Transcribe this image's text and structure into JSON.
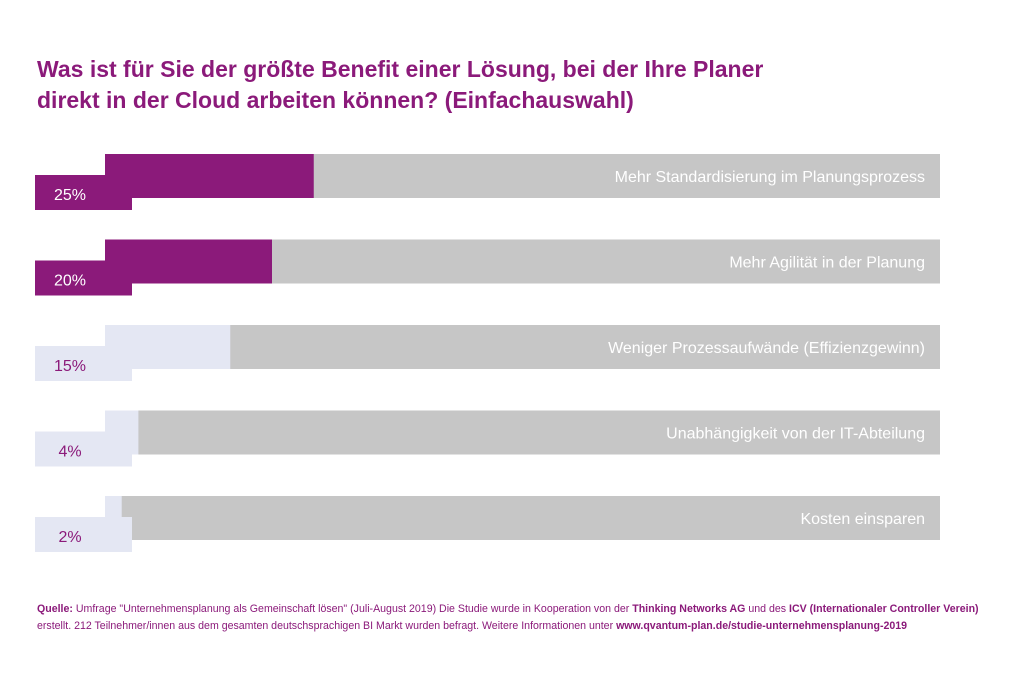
{
  "title_line1": "Was ist für Sie der größte Benefit einer Lösung, bei der Ihre Planer",
  "title_line2": "direkt in der Cloud arbeiten können? (Einfachauswahl)",
  "colors": {
    "accent": "#8b1a7a",
    "track": "#c6c6c6",
    "light": "#e4e7f3",
    "accent_dark": "#5c0f52",
    "light_dark": "#9aa0b4"
  },
  "chart_data": {
    "type": "bar",
    "orientation": "horizontal",
    "categories": [
      "Mehr Standardisierung im Planungsprozess",
      "Mehr Agilität in der Planung",
      "Weniger Prozessaufwände (Effizienzgewinn)",
      "Unabhängigkeit von der IT-Abteilung",
      "Kosten einsparen"
    ],
    "values": [
      25,
      20,
      15,
      4,
      2
    ],
    "value_labels": [
      "25%",
      "20%",
      "15%",
      "4%",
      "2%"
    ],
    "ylim": [
      0,
      100
    ]
  },
  "footer": {
    "source_label": "Quelle:",
    "text1": " Umfrage \"Unternehmensplanung als Gemeinschaft lösen\" (Juli-August 2019) Die Studie wurde in Kooperation von der ",
    "org1": "Thinking Networks AG",
    "text2": " und des ",
    "org2": "ICV (Internationaler Controller Verein)",
    "text3": "erstellt. 212 Teilnehmer/innen aus dem gesamten deutschsprachigen BI Markt wurden befragt. Weitere Informationen unter ",
    "url": "www.qvantum-plan.de/studie-unternehmensplanung-2019"
  }
}
